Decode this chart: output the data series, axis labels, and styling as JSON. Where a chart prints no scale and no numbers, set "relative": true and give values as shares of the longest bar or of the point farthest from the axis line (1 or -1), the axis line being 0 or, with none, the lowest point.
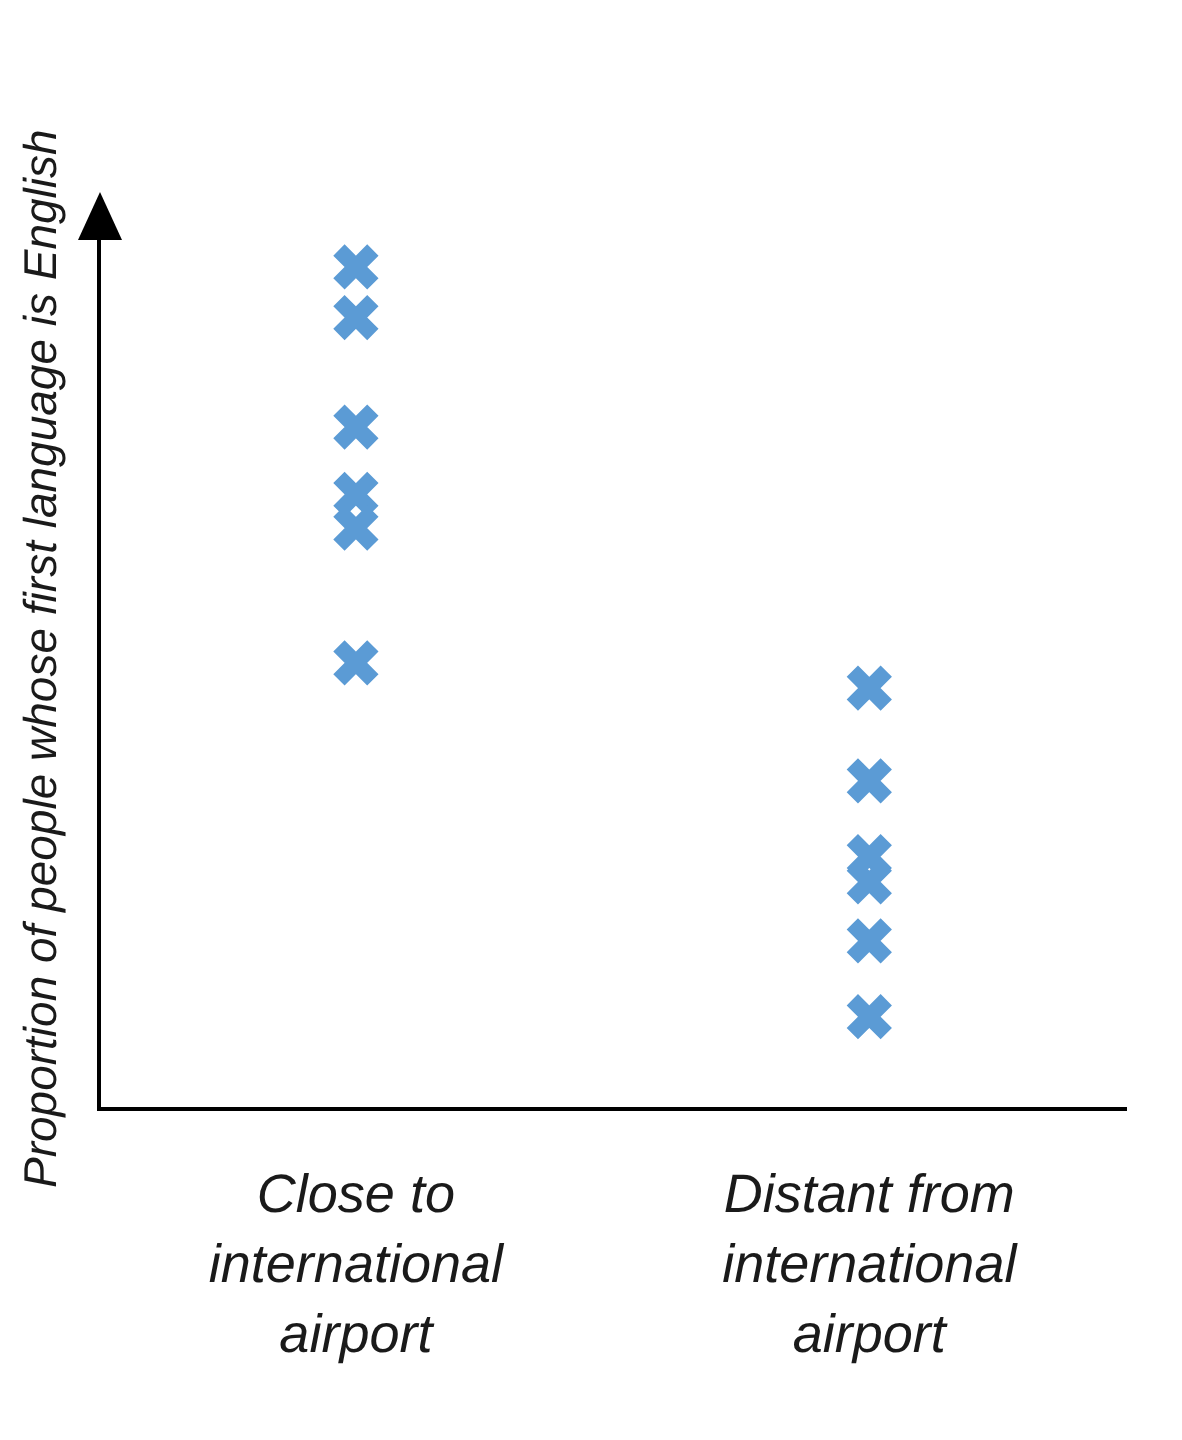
{
  "chart_data": {
    "type": "scatter",
    "ylabel": "Proportion of people whose first language is English",
    "categories": [
      "Close to international airport",
      "Distant from international airport"
    ],
    "relative": true,
    "marker": "cross",
    "legend": false,
    "grid": false,
    "series": [
      {
        "color": "#5b9bd5",
        "x": [
          "Close to international airport",
          "Close to international airport",
          "Close to international airport",
          "Close to international airport",
          "Close to international airport",
          "Close to international airport",
          "Distant from international airport",
          "Distant from international airport",
          "Distant from international airport",
          "Distant from international airport",
          "Distant from international airport",
          "Distant from international airport"
        ],
        "values": [
          1,
          0.94,
          0.81,
          0.73,
          0.69,
          0.53,
          0.5,
          0.39,
          0.3,
          0.27,
          0.2,
          0.11
        ]
      }
    ]
  }
}
